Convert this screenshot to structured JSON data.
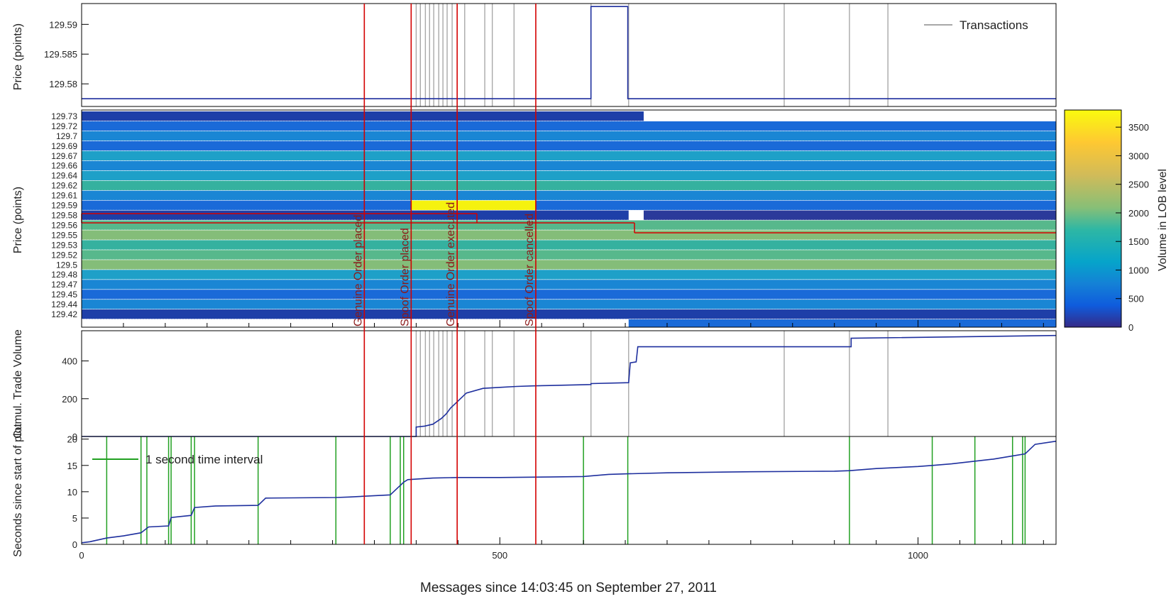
{
  "colors": {
    "price_line": "#1e2f9e",
    "transaction": "#a8a8a8",
    "event": "#d40000",
    "time_interval": "#22a022",
    "frame": "#000000"
  },
  "x_axis": {
    "label": "Messages since 14:03:45 on September 27, 2011",
    "xlim": [
      0,
      1165
    ],
    "ticks": [
      0,
      500,
      1000
    ]
  },
  "events": [
    {
      "x": 338,
      "label": "Genuine Order placed"
    },
    {
      "x": 394,
      "label": "Spoof Order placed"
    },
    {
      "x": 449,
      "label": "Genuine Order executed"
    },
    {
      "x": 543,
      "label": "Spoof Order cancelled"
    }
  ],
  "chart_data": [
    {
      "type": "line",
      "ylabel": "Price (points)",
      "ylim": [
        129.5762,
        129.5935
      ],
      "yticks": [
        129.58,
        129.585,
        129.59
      ],
      "legend": {
        "label": "Transactions",
        "position": "top-right"
      },
      "transactions_x": [
        400,
        405,
        411,
        416,
        421,
        427,
        432,
        437,
        443,
        458,
        482,
        491,
        517,
        609,
        654,
        840,
        918,
        964
      ],
      "series": [
        {
          "x": [
            0,
            609,
            609,
            653,
            653,
            1165
          ],
          "y": [
            129.5775,
            129.5775,
            129.593,
            129.593,
            129.5775,
            129.5775
          ]
        }
      ]
    },
    {
      "type": "heatmap",
      "ylabel": "Price (points)",
      "price_levels": [
        129.73,
        129.72,
        129.7,
        129.69,
        129.67,
        129.66,
        129.64,
        129.62,
        129.61,
        129.59,
        129.58,
        129.56,
        129.55,
        129.53,
        129.52,
        129.5,
        129.48,
        129.47,
        129.45,
        129.44,
        129.42
      ],
      "colorbar": {
        "label": "Volume in LOB level",
        "range": [
          0,
          3800
        ],
        "ticks": [
          0,
          500,
          1000,
          1500,
          2000,
          2500,
          3000,
          3500
        ]
      },
      "best_bid_ask_segments": [
        [
          0,
          129.5862,
          672,
          129.5862
        ],
        [
          672,
          129.5799,
          1165,
          129.5799
        ]
      ]
    },
    {
      "type": "line",
      "ylabel": "Cumul. Trade Volume",
      "ylim": [
        0,
        560
      ],
      "yticks": [
        0,
        200,
        400
      ],
      "series": [
        {
          "x": [
            0,
            400,
            400,
            410,
            420,
            425,
            430,
            436,
            441,
            447,
            460,
            480,
            500,
            520,
            540,
            560,
            609,
            609,
            654,
            656,
            663,
            665,
            920,
            920,
            1165
          ],
          "y": [
            0,
            0,
            50,
            55,
            65,
            80,
            95,
            120,
            150,
            175,
            230,
            255,
            260,
            265,
            268,
            270,
            275,
            280,
            285,
            390,
            395,
            475,
            475,
            520,
            535
          ]
        }
      ]
    },
    {
      "type": "line",
      "ylabel": "Seconds since start of plot",
      "ylim": [
        0,
        20.5
      ],
      "yticks": [
        0,
        5,
        10,
        15,
        20
      ],
      "legend": {
        "label": "1 second time interval",
        "position": "top-left"
      },
      "interval_markers_x": [
        30,
        71,
        78,
        104,
        107,
        131,
        135,
        211,
        304,
        369,
        381,
        385,
        600,
        653,
        918,
        1017,
        1068,
        1113,
        1125,
        1128
      ],
      "series": [
        {
          "x": [
            0,
            10,
            30,
            50,
            71,
            80,
            104,
            107,
            131,
            135,
            160,
            211,
            220,
            304,
            320,
            369,
            375,
            385,
            390,
            400,
            420,
            449,
            500,
            560,
            600,
            630,
            653,
            700,
            800,
            900,
            918,
            950,
            1000,
            1017,
            1040,
            1068,
            1090,
            1113,
            1128,
            1140,
            1165
          ],
          "y": [
            0.3,
            0.5,
            1.2,
            1.6,
            2.2,
            3.3,
            3.5,
            5.1,
            5.5,
            7.0,
            7.3,
            7.4,
            8.8,
            8.9,
            9.0,
            9.4,
            10.3,
            11.8,
            12.3,
            12.4,
            12.6,
            12.7,
            12.7,
            12.8,
            12.9,
            13.3,
            13.4,
            13.6,
            13.8,
            13.9,
            14.0,
            14.4,
            14.8,
            15.0,
            15.3,
            15.8,
            16.2,
            16.8,
            17.2,
            19.0,
            19.6
          ]
        }
      ]
    }
  ]
}
